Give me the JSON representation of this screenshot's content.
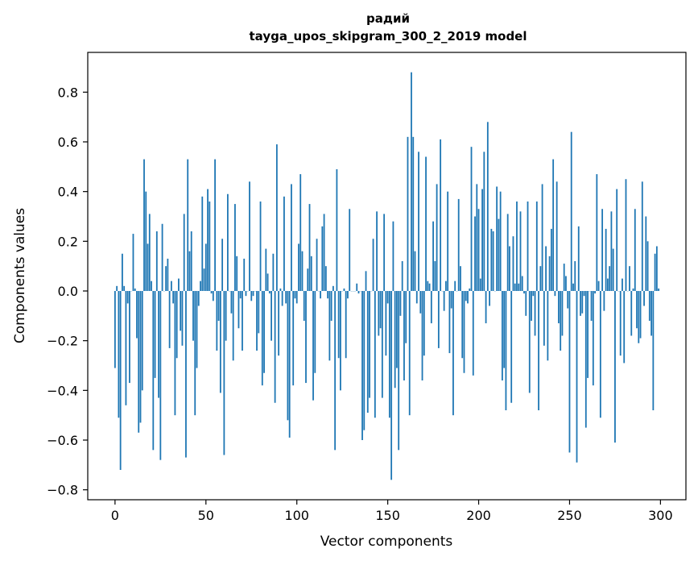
{
  "chart_data": {
    "type": "bar",
    "title": "радий",
    "subtitle": "tayga_upos_skipgram_300_2_2019 model",
    "xlabel": "Vector components",
    "ylabel": "Components values",
    "xlim": [
      -15,
      314
    ],
    "ylim": [
      -0.84,
      0.96
    ],
    "x_ticks": [
      0,
      50,
      100,
      150,
      200,
      250,
      300
    ],
    "y_ticks": [
      -0.8,
      -0.6,
      -0.4,
      -0.2,
      0.0,
      0.2,
      0.4,
      0.6,
      0.8
    ],
    "y_tick_labels": [
      "−0.8",
      "−0.6",
      "−0.4",
      "−0.2",
      "0.0",
      "0.2",
      "0.4",
      "0.6",
      "0.8"
    ],
    "bar_color": "#1f77b4",
    "grid": false,
    "values": [
      -0.31,
      0.02,
      -0.51,
      -0.72,
      0.15,
      0.02,
      -0.46,
      -0.05,
      -0.37,
      0.0,
      0.23,
      0.01,
      -0.19,
      -0.57,
      -0.53,
      -0.4,
      0.53,
      0.4,
      0.19,
      0.31,
      0.04,
      -0.64,
      -0.35,
      0.24,
      -0.43,
      -0.68,
      0.27,
      0.0,
      0.1,
      0.13,
      -0.23,
      0.04,
      -0.05,
      -0.5,
      -0.27,
      0.05,
      -0.16,
      -0.22,
      0.31,
      -0.67,
      0.53,
      0.16,
      0.24,
      -0.2,
      -0.5,
      -0.31,
      -0.06,
      0.04,
      0.38,
      0.09,
      0.19,
      0.41,
      0.36,
      -0.01,
      -0.04,
      0.53,
      -0.24,
      -0.12,
      -0.41,
      0.21,
      -0.66,
      -0.2,
      0.39,
      0.0,
      -0.09,
      -0.28,
      0.35,
      0.14,
      -0.15,
      -0.03,
      -0.24,
      0.13,
      -0.02,
      0.0,
      0.44,
      -0.04,
      -0.02,
      0.0,
      -0.24,
      -0.17,
      0.36,
      -0.38,
      -0.33,
      0.17,
      0.07,
      -0.01,
      -0.2,
      0.15,
      -0.45,
      0.59,
      -0.26,
      0.01,
      -0.06,
      0.38,
      -0.05,
      -0.52,
      -0.59,
      0.43,
      -0.38,
      -0.03,
      -0.05,
      0.19,
      0.47,
      0.16,
      -0.12,
      -0.37,
      0.09,
      0.35,
      0.14,
      -0.44,
      -0.33,
      0.21,
      0.0,
      -0.03,
      0.26,
      0.31,
      0.1,
      -0.03,
      -0.28,
      -0.12,
      0.02,
      -0.64,
      0.49,
      -0.27,
      -0.4,
      0.0,
      0.01,
      -0.27,
      -0.03,
      0.33,
      0.0,
      0.0,
      0.0,
      0.03,
      -0.01,
      0.0,
      -0.6,
      -0.56,
      0.08,
      -0.49,
      -0.43,
      0.0,
      0.21,
      -0.51,
      0.32,
      -0.18,
      -0.15,
      -0.43,
      0.31,
      -0.26,
      -0.05,
      -0.51,
      -0.76,
      0.28,
      -0.39,
      -0.31,
      -0.64,
      -0.1,
      0.12,
      -0.36,
      -0.21,
      0.62,
      -0.5,
      0.88,
      0.62,
      0.16,
      -0.05,
      0.56,
      -0.09,
      -0.36,
      -0.26,
      0.54,
      0.04,
      0.03,
      -0.13,
      0.28,
      0.12,
      0.43,
      -0.23,
      0.61,
      0.0,
      -0.08,
      0.04,
      0.4,
      -0.25,
      -0.07,
      -0.5,
      0.04,
      0.0,
      0.37,
      0.1,
      -0.27,
      -0.33,
      -0.04,
      -0.05,
      0.01,
      0.58,
      -0.34,
      0.3,
      0.43,
      0.33,
      0.05,
      0.41,
      0.56,
      -0.13,
      0.68,
      -0.06,
      0.25,
      0.24,
      0.0,
      0.42,
      0.29,
      0.4,
      -0.36,
      -0.31,
      -0.48,
      0.31,
      0.18,
      -0.45,
      0.22,
      0.03,
      0.36,
      0.03,
      0.32,
      0.06,
      -0.01,
      -0.1,
      0.36,
      -0.41,
      -0.12,
      -0.02,
      -0.18,
      0.36,
      -0.48,
      0.1,
      0.43,
      -0.22,
      0.18,
      -0.28,
      0.14,
      0.25,
      0.53,
      -0.02,
      0.44,
      -0.13,
      -0.24,
      -0.18,
      0.11,
      0.06,
      -0.07,
      -0.65,
      0.64,
      0.03,
      0.12,
      -0.69,
      0.26,
      -0.1,
      -0.09,
      -0.02,
      -0.55,
      -0.35,
      0.0,
      -0.12,
      -0.38,
      -0.01,
      0.47,
      0.04,
      -0.51,
      0.33,
      -0.08,
      0.25,
      0.05,
      0.1,
      0.32,
      0.17,
      -0.61,
      0.41,
      0.0,
      -0.26,
      0.05,
      -0.29,
      0.45,
      0.0,
      0.1,
      -0.18,
      0.01,
      0.33,
      -0.15,
      -0.21,
      -0.19,
      0.44,
      -0.06,
      0.3,
      0.2,
      -0.12,
      -0.18,
      -0.48,
      0.15,
      0.18,
      0.01
    ]
  }
}
